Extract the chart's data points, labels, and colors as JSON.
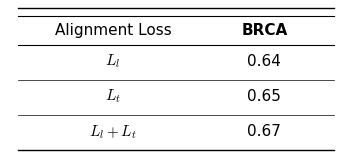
{
  "col_labels": [
    "Alignment Loss",
    "BRCA"
  ],
  "rows": [
    [
      "$L_l$",
      "0.64"
    ],
    [
      "$L_t$",
      "0.65"
    ],
    [
      "$L_l + L_t$",
      "0.67"
    ]
  ],
  "background_color": "#ffffff",
  "font_size": 11
}
